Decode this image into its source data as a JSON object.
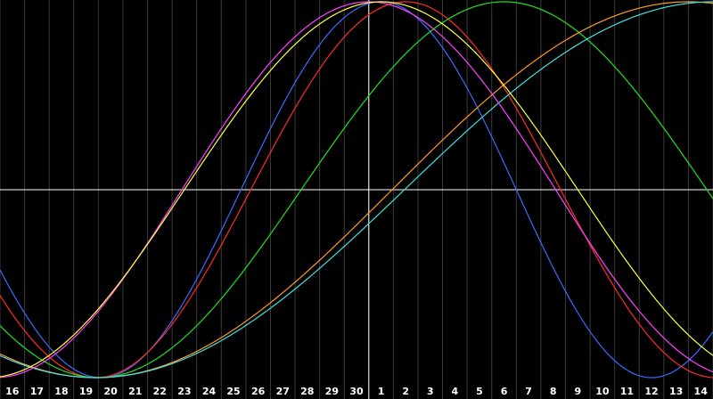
{
  "chart_data": {
    "type": "line",
    "title": "",
    "xlabel": "",
    "ylabel": "",
    "grid": true,
    "x_ticks": [
      "16",
      "17",
      "18",
      "19",
      "20",
      "21",
      "22",
      "23",
      "24",
      "25",
      "26",
      "27",
      "28",
      "29",
      "30",
      "1",
      "2",
      "3",
      "4",
      "5",
      "6",
      "7",
      "8",
      "9",
      "10",
      "11",
      "12",
      "13",
      "14"
    ],
    "xlim": [
      15.5,
      44.5
    ],
    "ylim": [
      0,
      1
    ],
    "vertical_marker": 30,
    "horizontal_marker": 0.5,
    "series": [
      {
        "color": "#3a6bff",
        "trough_x": 19.6,
        "peak_x": 31.0,
        "next_trough_x": 42.0,
        "x": [
          19.6,
          22,
          25,
          28,
          31,
          33,
          35,
          38,
          40,
          42,
          44.5
        ],
        "y": [
          0.0,
          0.1,
          0.5,
          0.9,
          1.0,
          0.9,
          0.6,
          0.25,
          0.1,
          0.0,
          0.1
        ]
      },
      {
        "color": "#ff2a2a",
        "trough_x": 19.4,
        "peak_x": 32.0,
        "next_trough_x": 44.6,
        "x": [
          19.4,
          22,
          25,
          28,
          32,
          35,
          38,
          40,
          42,
          44.5
        ],
        "y": [
          0.0,
          0.05,
          0.25,
          0.65,
          1.0,
          0.85,
          0.55,
          0.35,
          0.18,
          0.0
        ]
      },
      {
        "color": "#22e022",
        "trough_x": 19.5,
        "peak_x": 36.0,
        "next_trough_x": 52.5,
        "x": [
          19.5,
          22,
          25,
          28,
          31,
          33,
          36,
          38,
          40,
          42,
          44.5
        ],
        "y": [
          0.0,
          0.05,
          0.22,
          0.53,
          0.8,
          0.93,
          1.0,
          0.96,
          0.8,
          0.6,
          0.48
        ]
      },
      {
        "color": "#ff9a2a",
        "trough_x": 19.4,
        "peak_x": 43.5,
        "next_trough_x": 67.6,
        "x": [
          19.4,
          22,
          25,
          28,
          31,
          34,
          37,
          40,
          43.5,
          44.5
        ],
        "y": [
          0.0,
          0.04,
          0.14,
          0.3,
          0.5,
          0.7,
          0.86,
          0.96,
          1.0,
          1.0
        ]
      },
      {
        "color": "#40e0e0",
        "trough_x": 19.4,
        "peak_x": 44.5,
        "next_trough_x": 69.6,
        "x": [
          19.4,
          22,
          25,
          28,
          31,
          34,
          37,
          40,
          42,
          44.5
        ],
        "y": [
          0.0,
          0.03,
          0.12,
          0.27,
          0.45,
          0.63,
          0.8,
          0.92,
          0.97,
          0.99
        ]
      },
      {
        "color": "#ff40ff",
        "trough_x": 15.3,
        "peak_x": 30.5,
        "next_trough_x": 45.7,
        "x": [
          16,
          18,
          21,
          24,
          27,
          30.5,
          33,
          36,
          39,
          42,
          44.5
        ],
        "y": [
          0.02,
          0.18,
          0.5,
          0.82,
          0.97,
          1.0,
          0.92,
          0.72,
          0.45,
          0.2,
          0.05
        ]
      },
      {
        "color": "#ffff40",
        "trough_x": 15.0,
        "peak_x": 31.0,
        "next_trough_x": 47.0,
        "x": [
          16,
          18,
          21,
          24,
          27,
          31,
          34,
          37,
          40,
          43,
          44.5
        ],
        "y": [
          0.04,
          0.2,
          0.5,
          0.78,
          0.94,
          1.0,
          0.93,
          0.76,
          0.5,
          0.25,
          0.13
        ]
      }
    ]
  }
}
